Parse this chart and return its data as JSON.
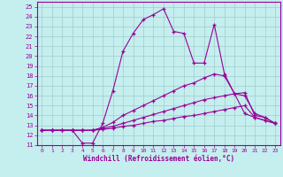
{
  "xlabel": "Windchill (Refroidissement éolien,°C)",
  "background_color": "#c5eeee",
  "grid_color": "#a0cccc",
  "line_color": "#990099",
  "xlim": [
    -0.5,
    23.5
  ],
  "ylim": [
    11,
    25.5
  ],
  "xticks": [
    0,
    1,
    2,
    3,
    4,
    5,
    6,
    7,
    8,
    9,
    10,
    11,
    12,
    13,
    14,
    15,
    16,
    17,
    18,
    19,
    20,
    21,
    22,
    23
  ],
  "yticks": [
    11,
    12,
    13,
    14,
    15,
    16,
    17,
    18,
    19,
    20,
    21,
    22,
    23,
    24,
    25
  ],
  "line1_x": [
    0,
    1,
    3,
    4,
    5,
    6,
    7,
    8,
    9,
    10,
    11,
    12,
    13,
    14,
    15,
    16,
    17,
    18,
    20,
    21,
    22,
    23
  ],
  "line1_y": [
    12.5,
    12.5,
    12.5,
    11.2,
    11.2,
    13.2,
    16.5,
    20.5,
    22.3,
    23.7,
    24.2,
    24.8,
    22.5,
    22.3,
    19.3,
    19.3,
    23.2,
    18.2,
    14.2,
    13.8,
    13.5,
    13.2
  ],
  "line2_x": [
    0,
    1,
    2,
    3,
    4,
    5,
    6,
    7,
    8,
    9,
    10,
    11,
    12,
    13,
    14,
    15,
    16,
    17,
    18,
    19,
    20,
    21,
    22,
    23
  ],
  "line2_y": [
    12.5,
    12.5,
    12.5,
    12.5,
    12.5,
    12.5,
    12.8,
    13.3,
    14.0,
    14.5,
    15.0,
    15.5,
    16.0,
    16.5,
    17.0,
    17.3,
    17.8,
    18.2,
    18.0,
    16.2,
    16.0,
    14.2,
    13.8,
    13.2
  ],
  "line3_x": [
    0,
    1,
    2,
    3,
    4,
    5,
    6,
    7,
    8,
    9,
    10,
    11,
    12,
    13,
    14,
    15,
    16,
    17,
    18,
    19,
    20,
    21,
    22,
    23
  ],
  "line3_y": [
    12.5,
    12.5,
    12.5,
    12.5,
    12.5,
    12.5,
    12.7,
    12.9,
    13.2,
    13.5,
    13.8,
    14.1,
    14.4,
    14.7,
    15.0,
    15.3,
    15.6,
    15.8,
    16.0,
    16.2,
    16.3,
    14.0,
    13.8,
    13.2
  ],
  "line4_x": [
    0,
    1,
    2,
    3,
    4,
    5,
    6,
    7,
    8,
    9,
    10,
    11,
    12,
    13,
    14,
    15,
    16,
    17,
    18,
    19,
    20,
    21,
    22,
    23
  ],
  "line4_y": [
    12.5,
    12.5,
    12.5,
    12.5,
    12.5,
    12.5,
    12.6,
    12.7,
    12.9,
    13.0,
    13.2,
    13.4,
    13.5,
    13.7,
    13.9,
    14.0,
    14.2,
    14.4,
    14.6,
    14.8,
    15.0,
    13.8,
    13.5,
    13.2
  ]
}
